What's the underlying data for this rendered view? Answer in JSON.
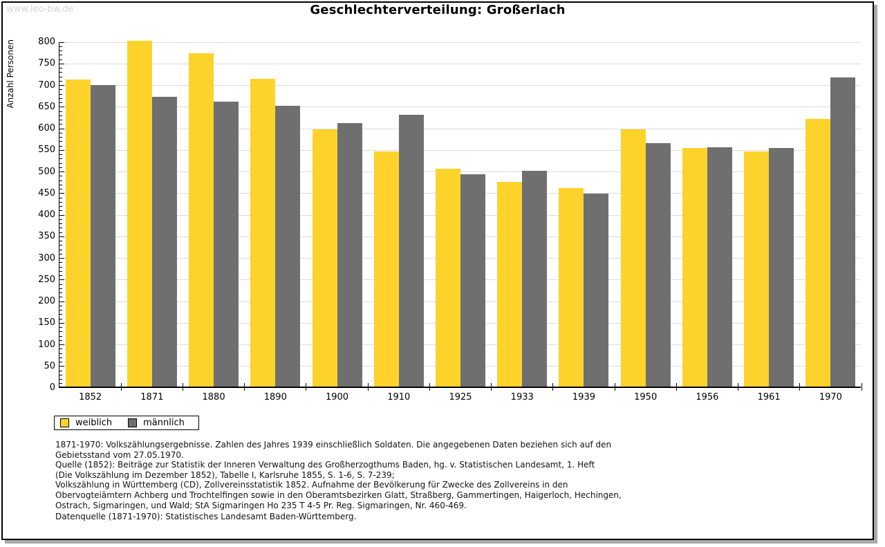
{
  "watermark": "www.leo-bw.de",
  "title": "Geschlechterverteilung: Großerlach",
  "chart_data": {
    "type": "bar",
    "title": "Geschlechterverteilung: Großerlach",
    "ylabel": "Anzahl Personen",
    "xlabel": "",
    "categories": [
      "1852",
      "1871",
      "1880",
      "1890",
      "1900",
      "1910",
      "1925",
      "1933",
      "1939",
      "1950",
      "1956",
      "1961",
      "1970"
    ],
    "series": [
      {
        "name": "weiblich",
        "color": "#fdd32b",
        "values": [
          710,
          800,
          772,
          712,
          595,
          544,
          504,
          474,
          460,
          595,
          552,
          544,
          619
        ]
      },
      {
        "name": "männlich",
        "color": "#6f6f6f",
        "values": [
          697,
          670,
          659,
          650,
          610,
          629,
          491,
          499,
          446,
          563,
          554,
          552,
          716
        ]
      }
    ],
    "ylim": [
      0,
      800
    ],
    "ytick_step": 50,
    "minor_tick_step": 10,
    "grid": "horizontal",
    "legend_position": "bottom-left"
  },
  "legend": {
    "items": [
      {
        "label": "weiblich",
        "color": "#fdd32b"
      },
      {
        "label": "männlich",
        "color": "#6f6f6f"
      }
    ]
  },
  "footer": {
    "lines": [
      "1871-1970: Volkszählungsergebnisse. Zahlen des Jahres 1939 einschließlich Soldaten. Die angegebenen Daten beziehen sich auf den",
      "Gebietsstand vom 27.05.1970.",
      "Quelle (1852): Beiträge zur Statistik der Inneren Verwaltung des Großherzogthums Baden, hg. v. Statistischen Landesamt, 1. Heft",
      "(Die Volkszählung im Dezember 1852), Tabelle I, Karlsruhe 1855, S. 1-6, S. 7-239;",
      "Volkszählung in Württemberg (CD), Zollvereinsstatistik 1852. Aufnahme der Bevölkerung für Zwecke des Zollvereins in den",
      "Obervogteiämtern Achberg und Trochtelfingen sowie in den Oberamtsbezirken Glatt, Straßberg, Gammertingen, Haigerloch, Hechingen,",
      "Ostrach, Sigmaringen, und Wald; StA Sigmaringen Ho 235 T 4-5 Pr. Reg. Sigmaringen, Nr. 460-469."
    ],
    "datasource": "Datenquelle (1871-1970): Statistisches Landesamt Baden-Württemberg."
  },
  "colors": {
    "female_bar": "#fdd32b",
    "male_bar": "#6f6f6f",
    "gridline": "#dcdcdc",
    "axis": "#000000",
    "watermark_text": "#d6d6d6",
    "frame_border": "#000000",
    "frame_shadow": "#aaaaaa"
  }
}
